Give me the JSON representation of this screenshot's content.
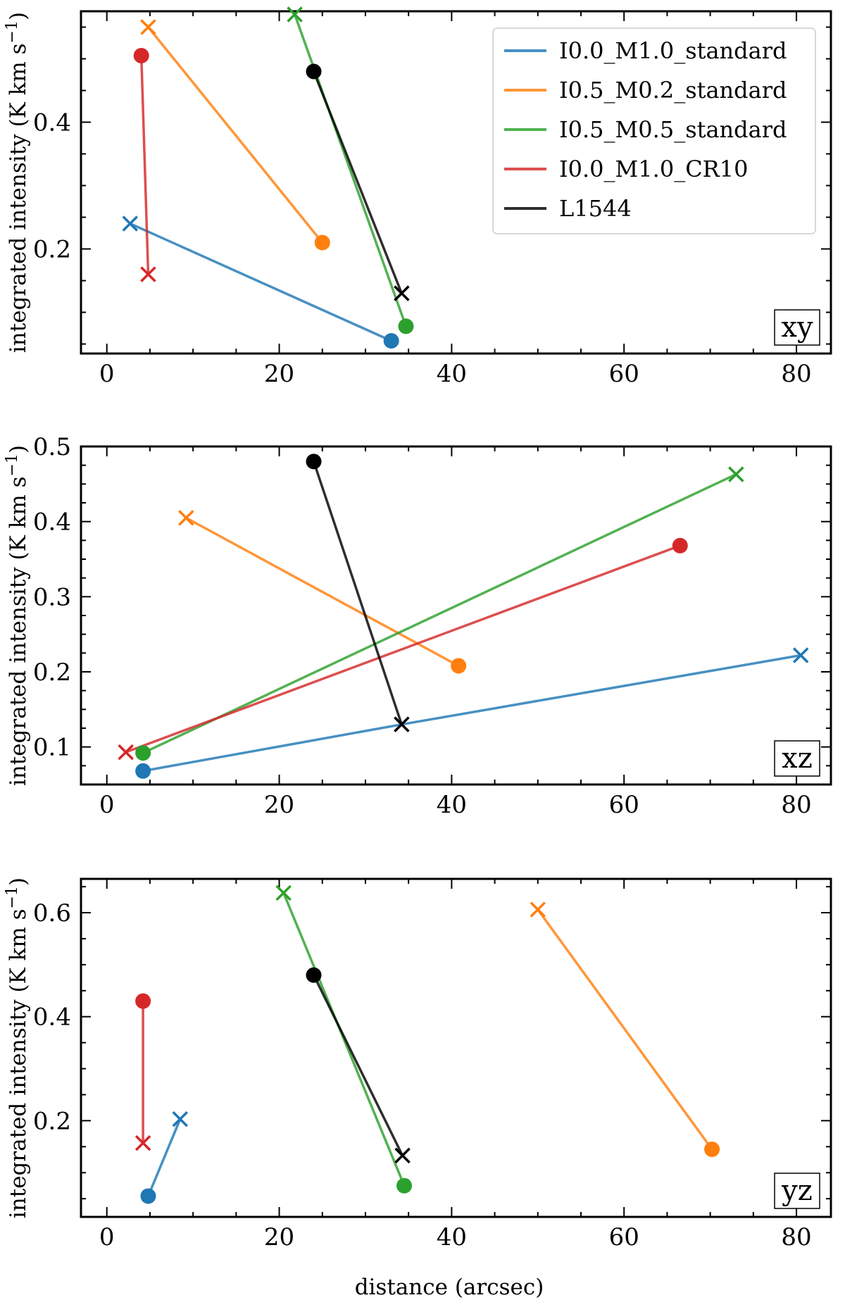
{
  "figure": {
    "xlabel": "distance (arcsec)",
    "ylabel": "integrated intensity (K km s",
    "ylabel_sup": "−1",
    "ylabel_close": ")"
  },
  "legend": {
    "entries": [
      {
        "name": "I0.0_M1.0_standard",
        "color": "#1f77b4"
      },
      {
        "name": "I0.5_M0.2_standard",
        "color": "#ff7f0e"
      },
      {
        "name": "I0.5_M0.5_standard",
        "color": "#2ca02c"
      },
      {
        "name": "I0.0_M1.0_CR10",
        "color": "#d62728"
      },
      {
        "name": "L1544",
        "color": "#000000"
      }
    ]
  },
  "chart_data": [
    {
      "type": "line",
      "panel": "xy",
      "xlabel": "",
      "ylabel": "integrated intensity (K km s−1)",
      "xlim": [
        -3,
        84
      ],
      "ylim": [
        0.035,
        0.575
      ],
      "xticks": [
        0,
        20,
        40,
        60,
        80
      ],
      "yticks": [
        0.2,
        0.4
      ],
      "ytick_labels": [
        "0.2",
        "0.4"
      ],
      "series": [
        {
          "name": "I0.0_M1.0_standard",
          "color": "#1f77b4",
          "cross": {
            "x": 2.7,
            "y": 0.24
          },
          "dot": {
            "x": 33.0,
            "y": 0.055
          }
        },
        {
          "name": "I0.5_M0.2_standard",
          "color": "#ff7f0e",
          "cross": {
            "x": 4.8,
            "y": 0.55
          },
          "dot": {
            "x": 25.0,
            "y": 0.21
          }
        },
        {
          "name": "I0.5_M0.5_standard",
          "color": "#2ca02c",
          "cross": {
            "x": 21.8,
            "y": 0.57
          },
          "dot": {
            "x": 34.7,
            "y": 0.078
          }
        },
        {
          "name": "I0.0_M1.0_CR10",
          "color": "#d62728",
          "cross": {
            "x": 4.8,
            "y": 0.16
          },
          "dot": {
            "x": 4.0,
            "y": 0.505
          }
        },
        {
          "name": "L1544",
          "color": "#000000",
          "cross": {
            "x": 34.2,
            "y": 0.13
          },
          "dot": {
            "x": 24.0,
            "y": 0.48
          }
        }
      ]
    },
    {
      "type": "line",
      "panel": "xz",
      "xlabel": "",
      "ylabel": "integrated intensity (K km s−1)",
      "xlim": [
        -3,
        84
      ],
      "ylim": [
        0.05,
        0.5
      ],
      "xticks": [
        0,
        20,
        40,
        60,
        80
      ],
      "yticks": [
        0.1,
        0.2,
        0.3,
        0.4,
        0.5
      ],
      "ytick_labels": [
        "0.1",
        "0.2",
        "0.3",
        "0.4",
        "0.5"
      ],
      "series": [
        {
          "name": "I0.0_M1.0_standard",
          "color": "#1f77b4",
          "cross": {
            "x": 80.5,
            "y": 0.222
          },
          "dot": {
            "x": 4.2,
            "y": 0.068
          },
          "via": {
            "x": 34.2,
            "y": 0.13
          }
        },
        {
          "name": "I0.5_M0.2_standard",
          "color": "#ff7f0e",
          "cross": {
            "x": 9.2,
            "y": 0.405
          },
          "dot": {
            "x": 40.8,
            "y": 0.208
          }
        },
        {
          "name": "I0.5_M0.5_standard",
          "color": "#2ca02c",
          "cross": {
            "x": 73.0,
            "y": 0.463
          },
          "dot": {
            "x": 4.2,
            "y": 0.092
          }
        },
        {
          "name": "I0.0_M1.0_CR10",
          "color": "#d62728",
          "cross": {
            "x": 2.2,
            "y": 0.093
          },
          "dot": {
            "x": 66.5,
            "y": 0.368
          }
        },
        {
          "name": "L1544",
          "color": "#000000",
          "cross": {
            "x": 34.2,
            "y": 0.13
          },
          "dot": {
            "x": 24.0,
            "y": 0.48
          }
        }
      ]
    },
    {
      "type": "line",
      "panel": "yz",
      "xlabel": "distance (arcsec)",
      "ylabel": "integrated intensity (K km s−1)",
      "xlim": [
        -3,
        84
      ],
      "ylim": [
        0.015,
        0.665
      ],
      "xticks": [
        0,
        20,
        40,
        60,
        80
      ],
      "yticks": [
        0.2,
        0.4,
        0.6
      ],
      "ytick_labels": [
        "0.2",
        "0.4",
        "0.6"
      ],
      "series": [
        {
          "name": "I0.0_M1.0_standard",
          "color": "#1f77b4",
          "cross": {
            "x": 8.5,
            "y": 0.203
          },
          "dot": {
            "x": 4.8,
            "y": 0.055
          }
        },
        {
          "name": "I0.5_M0.2_standard",
          "color": "#ff7f0e",
          "cross": {
            "x": 50.0,
            "y": 0.606
          },
          "dot": {
            "x": 70.2,
            "y": 0.145
          }
        },
        {
          "name": "I0.5_M0.5_standard",
          "color": "#2ca02c",
          "cross": {
            "x": 20.5,
            "y": 0.638
          },
          "dot": {
            "x": 34.5,
            "y": 0.075
          }
        },
        {
          "name": "I0.0_M1.0_CR10",
          "color": "#d62728",
          "cross": {
            "x": 4.2,
            "y": 0.157
          },
          "dot": {
            "x": 4.2,
            "y": 0.43
          }
        },
        {
          "name": "L1544",
          "color": "#000000",
          "cross": {
            "x": 34.3,
            "y": 0.133
          },
          "dot": {
            "x": 24.0,
            "y": 0.48
          }
        }
      ]
    }
  ]
}
